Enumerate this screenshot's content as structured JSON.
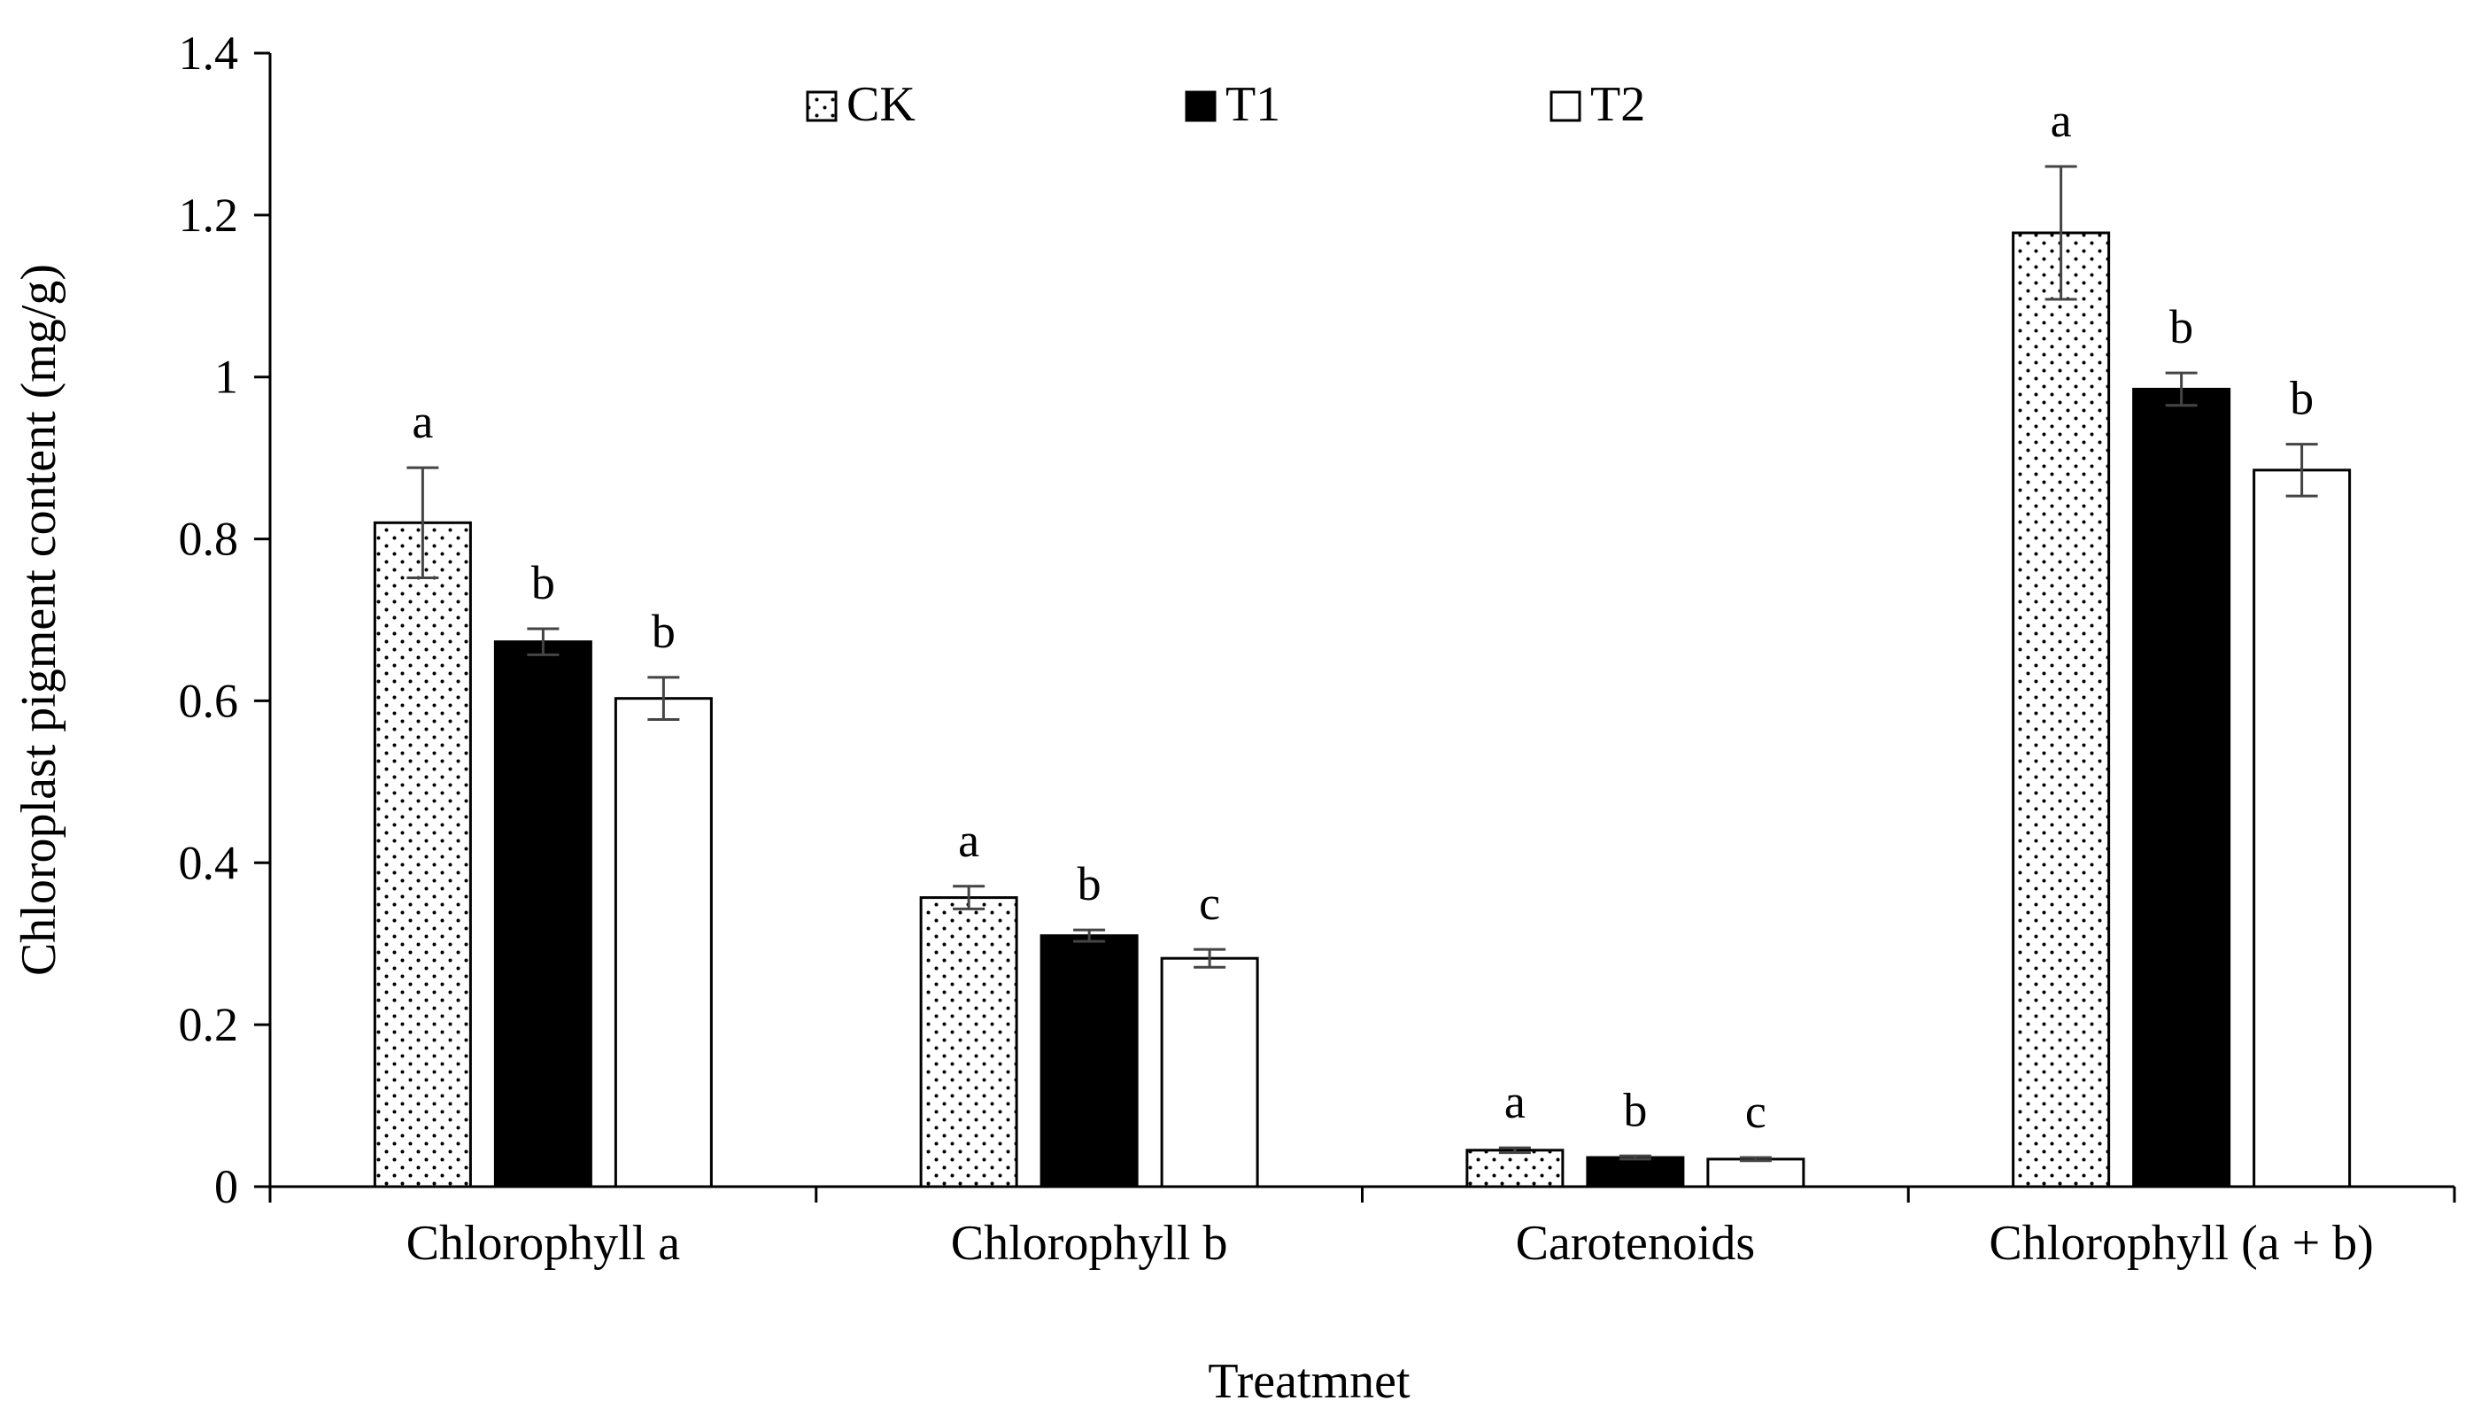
{
  "chart_data": {
    "type": "bar",
    "title": "",
    "xlabel": "Treatmnet",
    "ylabel": "Chloroplast pigment content (mg/g)",
    "ylim": [
      0,
      1.4
    ],
    "yticks": [
      0,
      0.2,
      0.4,
      0.6,
      0.8,
      1,
      1.2,
      1.4
    ],
    "ytick_labels": [
      "0",
      "0.2",
      "0.4",
      "0.6",
      "0.8",
      "1",
      "1.2",
      "1.4"
    ],
    "categories": [
      "Chlorophyll a",
      "Chlorophyll b",
      "Carotenoids",
      "Chlorophyll (a + b)"
    ],
    "grid": false,
    "legend_position": "top",
    "series": [
      {
        "name": "CK",
        "fill": "dotted",
        "values": [
          0.82,
          0.357,
          0.045,
          1.178
        ],
        "errors": [
          0.068,
          0.014,
          0.003,
          0.082
        ],
        "labels": [
          "a",
          "a",
          "a",
          "a"
        ]
      },
      {
        "name": "T1",
        "fill": "#000000",
        "values": [
          0.673,
          0.31,
          0.036,
          0.985
        ],
        "errors": [
          0.016,
          0.007,
          0.002,
          0.02
        ],
        "labels": [
          "b",
          "b",
          "b",
          "b"
        ]
      },
      {
        "name": "T2",
        "fill": "#ffffff",
        "values": [
          0.603,
          0.282,
          0.034,
          0.885
        ],
        "errors": [
          0.026,
          0.011,
          0.002,
          0.032
        ],
        "labels": [
          "b",
          "c",
          "c",
          "b"
        ]
      }
    ]
  }
}
